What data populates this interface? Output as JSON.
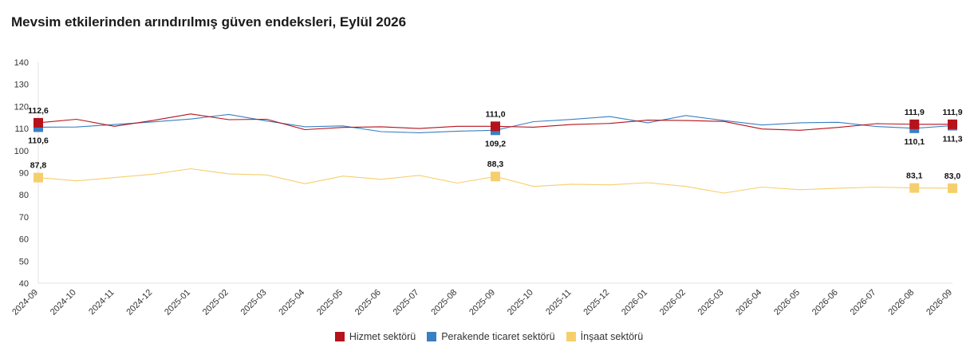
{
  "title": "Mevsim etkilerinden arındırılmış güven endeksleri, Eylül 2026",
  "chart_data": {
    "type": "line",
    "title": "Mevsim etkilerinden arındırılmış güven endeksleri, Eylül 2026",
    "xlabel": "",
    "ylabel": "",
    "ylim": [
      40,
      140
    ],
    "yticks": [
      40,
      50,
      60,
      70,
      80,
      90,
      100,
      110,
      120,
      130,
      140
    ],
    "grid": false,
    "legend_position": "bottom",
    "categories": [
      "2024-09",
      "2024-10",
      "2024-11",
      "2024-12",
      "2025-01",
      "2025-02",
      "2025-03",
      "2025-04",
      "2025-05",
      "2025-06",
      "2025-07",
      "2025-08",
      "2025-09",
      "2025-10",
      "2025-11",
      "2025-12",
      "2026-01",
      "2026-02",
      "2026-03",
      "2026-04",
      "2026-05",
      "2026-06",
      "2026-07",
      "2026-08",
      "2026-09"
    ],
    "series": [
      {
        "name": "Hizmet sektörü",
        "color": "#b5121b",
        "values": [
          112.6,
          114.2,
          111.0,
          113.6,
          116.6,
          114.0,
          114.2,
          109.5,
          110.5,
          110.8,
          110.0,
          111.0,
          111.0,
          110.6,
          111.8,
          112.3,
          113.8,
          113.6,
          113.2,
          109.8,
          109.2,
          110.5,
          112.2,
          111.9,
          111.9
        ],
        "labels": {
          "2024-09": "112,6",
          "2025-09": "111,0",
          "2026-08": "111,9",
          "2026-09": "111,9"
        }
      },
      {
        "name": "Perakende ticaret sektörü",
        "color": "#3a7fc1",
        "values": [
          110.6,
          110.7,
          111.8,
          113.0,
          114.3,
          116.4,
          113.4,
          110.8,
          111.2,
          108.6,
          108.1,
          108.8,
          109.2,
          113.1,
          114.1,
          115.4,
          112.6,
          115.9,
          113.6,
          111.6,
          112.6,
          112.8,
          110.9,
          110.1,
          111.3
        ],
        "labels": {
          "2024-09": "110,6",
          "2025-09": "109,2",
          "2026-08": "110,1",
          "2026-09": "111,3"
        }
      },
      {
        "name": "İnşaat sektörü",
        "color": "#f6cf6d",
        "values": [
          87.8,
          86.3,
          87.8,
          89.3,
          91.8,
          89.5,
          89.0,
          85.0,
          88.5,
          87.0,
          88.8,
          85.3,
          88.3,
          83.8,
          84.8,
          84.5,
          85.5,
          83.8,
          80.8,
          83.5,
          82.3,
          83.0,
          83.5,
          83.1,
          83.0
        ],
        "labels": {
          "2024-09": "87,8",
          "2025-09": "88,3",
          "2026-08": "83,1",
          "2026-09": "83,0"
        }
      }
    ]
  }
}
